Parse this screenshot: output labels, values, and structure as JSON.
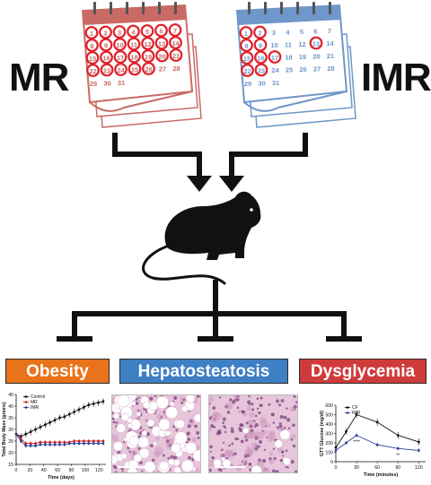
{
  "labels": {
    "left": "MR",
    "right": "IMR"
  },
  "colors": {
    "mr_calendar": "#c96a64",
    "imr_calendar": "#6f97c9",
    "circle": "#e0202a",
    "obesity": "#e8731b",
    "hepatosteatosis": "#3f7fc4",
    "dysglycemia": "#cf3b3b"
  },
  "calendar_numbers": {
    "mr": [
      "1",
      "2",
      "3",
      "4",
      "5",
      "6",
      "7",
      "8",
      "9",
      "10",
      "11",
      "12",
      "13",
      "14",
      "15",
      "16",
      "17",
      "18",
      "19",
      "20",
      "21",
      "22",
      "23",
      "24",
      "25",
      "26",
      "27",
      "28",
      "29",
      "30",
      "31"
    ],
    "imr": [
      "1",
      "2",
      "3",
      "4",
      "5",
      "6",
      "7",
      "8",
      "9",
      "10",
      "11",
      "12",
      "13",
      "14",
      "15",
      "16",
      "17",
      "18",
      "19",
      "20",
      "21",
      "22",
      "23",
      "24",
      "25",
      "26",
      "27",
      "28",
      "29",
      "30",
      "31"
    ]
  },
  "outcomes": [
    "Obesity",
    "Hepatosteatosis",
    "Dysglycemia"
  ],
  "chart_data": [
    {
      "type": "line",
      "ylabel": "Total Body Mass (grams)",
      "xlabel": "Time (days)",
      "xlim": [
        0,
        130
      ],
      "ylim": [
        15,
        45
      ],
      "xticks": [
        "0",
        "20",
        "40",
        "60",
        "80",
        "100",
        "120"
      ],
      "yticks": [
        "15",
        "20",
        "25",
        "30",
        "35",
        "40",
        "45"
      ],
      "legend_position": "top-left",
      "series": [
        {
          "name": "Control",
          "color": "#111111",
          "x": [
            0,
            7,
            14,
            21,
            28,
            35,
            42,
            49,
            56,
            63,
            70,
            77,
            84,
            91,
            98,
            105,
            112,
            119,
            126
          ],
          "values": [
            28,
            27,
            28,
            29,
            30,
            31,
            32,
            33,
            34,
            35,
            35.5,
            36.5,
            37.5,
            38.5,
            39.5,
            40.5,
            41,
            41.5,
            42
          ]
        },
        {
          "name": "MR",
          "color": "#d01f1f",
          "x": [
            0,
            7,
            14,
            21,
            28,
            35,
            42,
            49,
            56,
            63,
            70,
            77,
            84,
            91,
            98,
            105,
            112,
            119,
            126
          ],
          "values": [
            28,
            26,
            24,
            24,
            24,
            24.5,
            24.5,
            24.5,
            24.5,
            24.5,
            24.5,
            24.5,
            25,
            25,
            25,
            25,
            25,
            25,
            25
          ]
        },
        {
          "name": "IMR",
          "color": "#2a3f9a",
          "x": [
            0,
            7,
            14,
            21,
            28,
            35,
            42,
            49,
            56,
            63,
            70,
            77,
            84,
            91,
            98,
            105,
            112,
            119,
            126
          ],
          "values": [
            28,
            25,
            23,
            23,
            23,
            23.5,
            23.5,
            23.5,
            23.5,
            23.5,
            23.5,
            24,
            24,
            24,
            24,
            24,
            24,
            24,
            24
          ]
        }
      ]
    },
    {
      "type": "line",
      "ylabel": "GTT Glucose (mg/dl)",
      "xlabel": "Time (minutes)",
      "xlim": [
        0,
        130
      ],
      "ylim": [
        0,
        600
      ],
      "xticks": [
        "0",
        "30",
        "60",
        "90",
        "120"
      ],
      "yticks": [
        "0",
        "100",
        "200",
        "300",
        "400",
        "500",
        "600"
      ],
      "legend_position": "top-right",
      "annotations": [
        "****",
        "**"
      ],
      "series": [
        {
          "name": "CF",
          "color": "#111111",
          "x": [
            0,
            15,
            30,
            60,
            90,
            120
          ],
          "values": [
            150,
            320,
            500,
            420,
            280,
            210
          ]
        },
        {
          "name": "IMR",
          "color": "#2a3f9a",
          "x": [
            0,
            15,
            30,
            60,
            90,
            120
          ],
          "values": [
            120,
            200,
            280,
            180,
            140,
            120
          ]
        }
      ]
    }
  ]
}
